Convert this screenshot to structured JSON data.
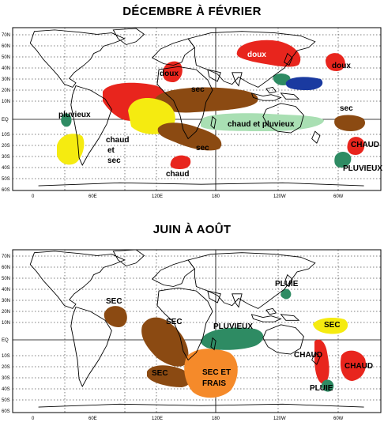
{
  "titles": {
    "top": "DÉCEMBRE  À FÉVRIER",
    "bottom": "JUIN À AOÛT"
  },
  "axes": {
    "lat_labels": [
      "70N",
      "60N",
      "50N",
      "40N",
      "30N",
      "20N",
      "10N",
      "EQ",
      "10S",
      "20S",
      "30S",
      "40S",
      "50S",
      "60S"
    ],
    "lon_labels": [
      "0",
      "60E",
      "120E",
      "180",
      "120W",
      "60W"
    ]
  },
  "colors": {
    "chaud": "#e8251d",
    "sec": "#8b4a12",
    "doux": "#e8251d",
    "pluvieux": "#2e8b63",
    "chaud_et_sec": "#f5eb10",
    "chaud_et_pluvieux": "#a9dfb3",
    "frais": "#1a3aa0",
    "sec_et_frais": "#f58a2a"
  },
  "top_labels": {
    "doux_a": "doux",
    "doux_b": "doux",
    "doux_c": "doux",
    "sec_a": "sec",
    "sec_b": "sec",
    "sec_c": "sec",
    "pluvieux": "pluvieux",
    "chaud_a": "chaud",
    "et": "et",
    "sec_d": "sec",
    "chaud_b": "chaud",
    "chaud_et_pluvieux": "chaud et pluvieux",
    "chaud_c": "CHAUD",
    "pluvieux_b": "PLUVIEUX"
  },
  "bottom_labels": {
    "sec_a": "SEC",
    "sec_b": "SEC",
    "sec_c": "SEC",
    "pluvieux": "PLUVIEUX",
    "pluie_a": "PLUIE",
    "sec_d": "SEC",
    "chaud_a": "CHAUD",
    "chaud_b": "CHAUD",
    "pluie_b": "PLUIE",
    "sec_et": "SEC ET",
    "frais": "FRAIS"
  }
}
